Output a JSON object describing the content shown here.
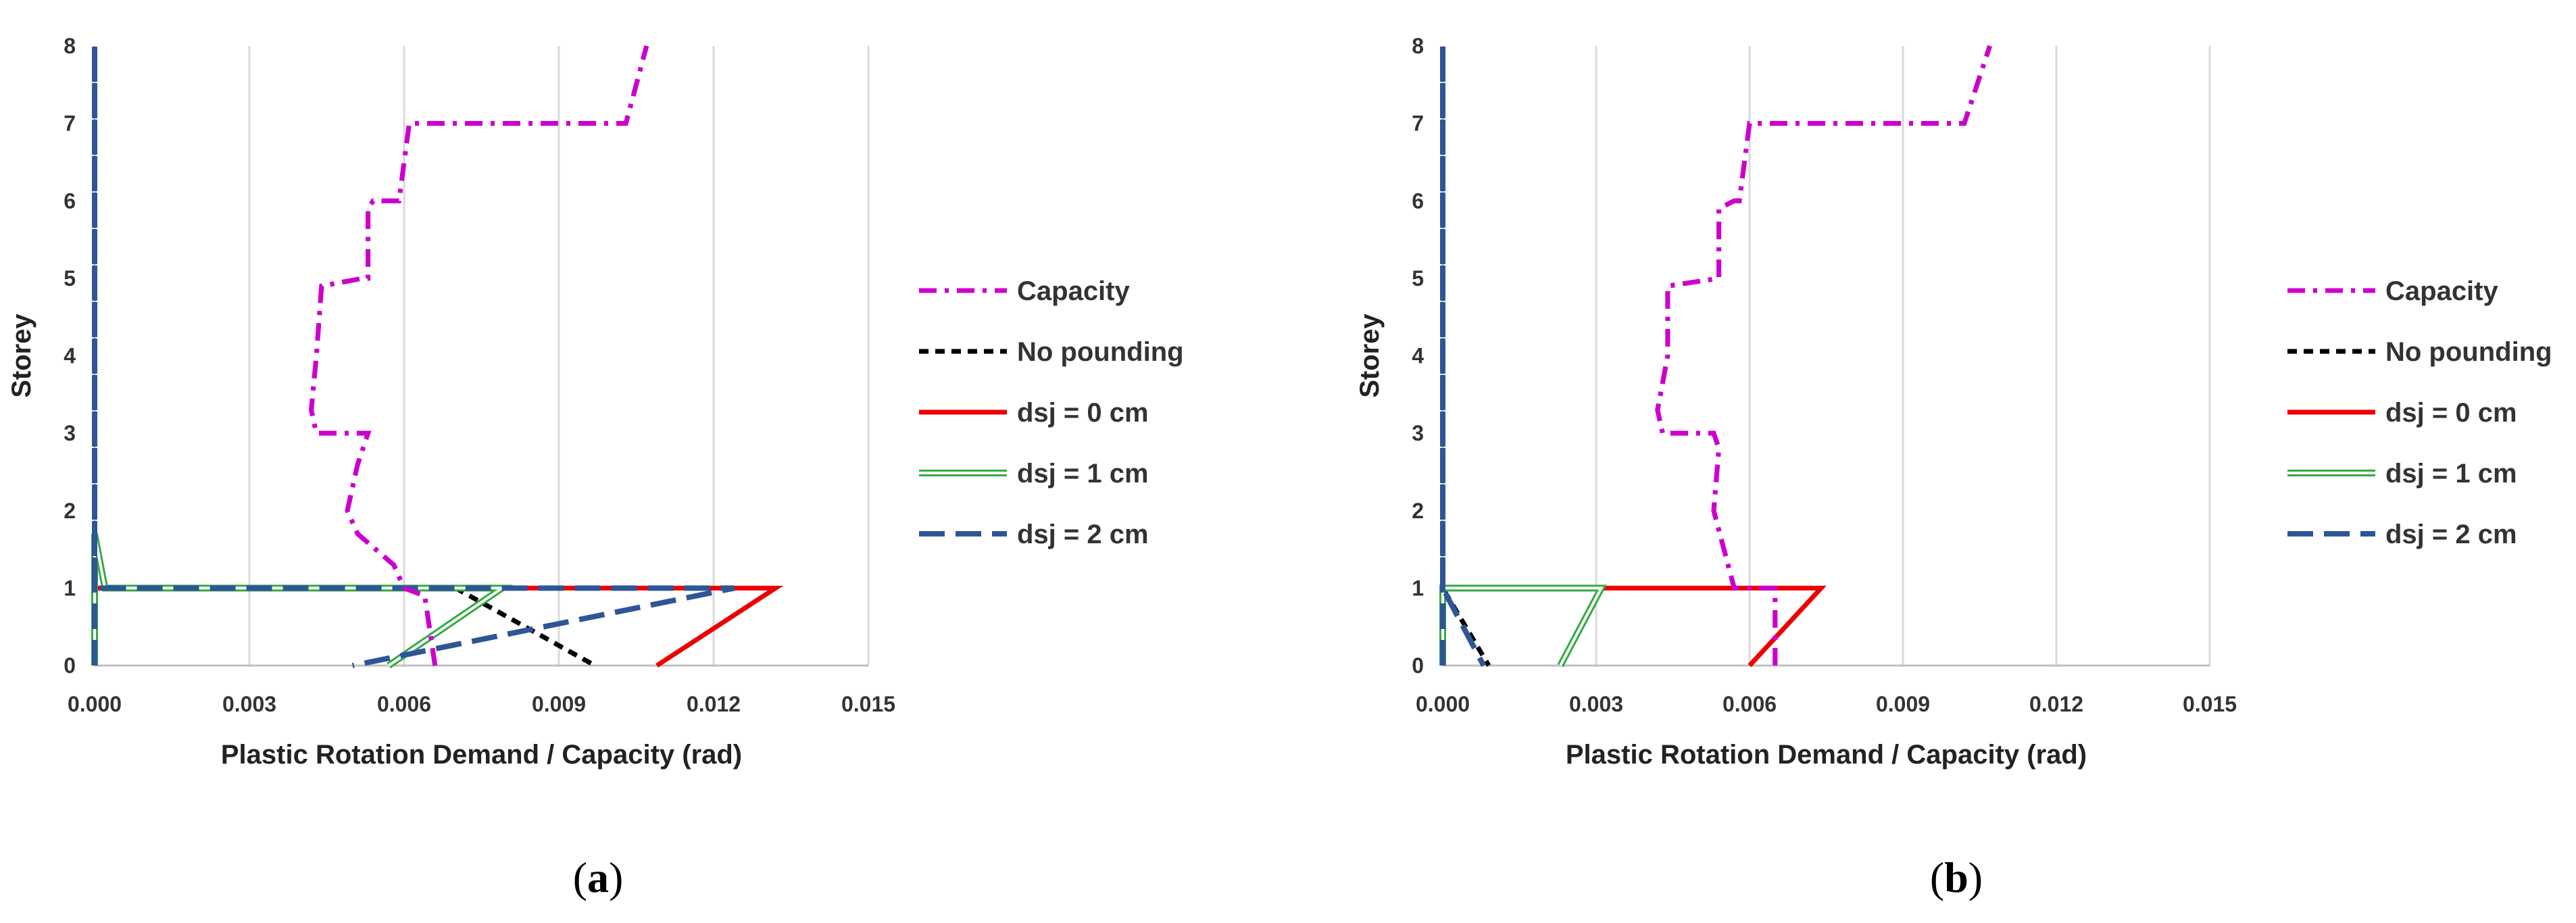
{
  "colors": {
    "capacity": "#CC00CC",
    "no_pounding": "#000000",
    "dsj0": "#EE0000",
    "dsj1": "#33AA44",
    "dsj2": "#2F5597",
    "grid": "#D9D9D9",
    "axis": "#BFBFBF"
  },
  "chart_data": [
    {
      "type": "line",
      "panel": "a",
      "caption": {
        "open": "(",
        "letter": "a",
        "close": ")"
      },
      "xlabel": "Plastic Rotation Demand / Capacity (rad)",
      "ylabel": "Storey",
      "xlim": [
        0,
        0.015
      ],
      "ylim": [
        0,
        8
      ],
      "xticks": [
        "0.000",
        "0.003",
        "0.006",
        "0.009",
        "0.012",
        "0.015"
      ],
      "yticks": [
        "0",
        "1",
        "2",
        "3",
        "4",
        "5",
        "6",
        "7",
        "8"
      ],
      "grid": "vertical",
      "legend_position": "right",
      "series": [
        {
          "key": "capacity",
          "name": "Capacity",
          "style": "dashdot",
          "points": [
            [
              0.0066,
              0
            ],
            [
              0.0064,
              0.9
            ],
            [
              0.006,
              1.0
            ],
            [
              0.0058,
              1.3
            ],
            [
              0.0051,
              1.7
            ],
            [
              0.0049,
              2.0
            ],
            [
              0.0051,
              2.6
            ],
            [
              0.0053,
              3.0
            ],
            [
              0.0043,
              3.0
            ],
            [
              0.0042,
              3.3
            ],
            [
              0.0043,
              4.0
            ],
            [
              0.0044,
              4.9
            ],
            [
              0.0052,
              5.0
            ],
            [
              0.0053,
              5.0
            ],
            [
              0.0053,
              5.9
            ],
            [
              0.0054,
              6.0
            ],
            [
              0.0059,
              6.0
            ],
            [
              0.0061,
              7.0
            ],
            [
              0.0103,
              7.0
            ],
            [
              0.0107,
              8.0
            ]
          ]
        },
        {
          "key": "no_pounding",
          "name": "No pounding",
          "style": "dashed",
          "points": [
            [
              0.0,
              0
            ],
            [
              0.0,
              1.0
            ],
            [
              0.007,
              1.0
            ],
            [
              0.0097,
              0
            ]
          ]
        },
        {
          "key": "dsj0",
          "name": "dsj = 0 cm",
          "style": "solid",
          "points": [
            [
              0.0,
              0
            ],
            [
              0.0,
              1.0
            ],
            [
              0.0132,
              1.0
            ],
            [
              0.0109,
              0
            ]
          ]
        },
        {
          "key": "dsj1",
          "name": "dsj = 1 cm",
          "style": "double",
          "points": [
            [
              0.0,
              0
            ],
            [
              0.0,
              1.7
            ],
            [
              0.0002,
              1.0
            ],
            [
              0.0079,
              1.0
            ],
            [
              0.0057,
              0
            ]
          ]
        },
        {
          "key": "dsj2",
          "name": "dsj = 2 cm",
          "style": "longdash",
          "points": [
            [
              0.0,
              0
            ],
            [
              0.0,
              8.0
            ],
            [
              0.0,
              1.0
            ],
            [
              0.0124,
              1.0
            ],
            [
              0.005,
              0
            ]
          ]
        }
      ]
    },
    {
      "type": "line",
      "panel": "b",
      "caption": {
        "open": "(",
        "letter": "b",
        "close": ")"
      },
      "xlabel": "Plastic Rotation Demand / Capacity (rad)",
      "ylabel": "Storey",
      "xlim": [
        0,
        0.015
      ],
      "ylim": [
        0,
        8
      ],
      "xticks": [
        "0.000",
        "0.003",
        "0.006",
        "0.009",
        "0.012",
        "0.015"
      ],
      "yticks": [
        "0",
        "1",
        "2",
        "3",
        "4",
        "5",
        "6",
        "7",
        "8"
      ],
      "grid": "vertical",
      "legend_position": "right",
      "series": [
        {
          "key": "capacity",
          "name": "Capacity",
          "style": "dashdot",
          "points": [
            [
              0.0065,
              0
            ],
            [
              0.0065,
              1.0
            ],
            [
              0.0057,
              1.0
            ],
            [
              0.0053,
              2.0
            ],
            [
              0.0054,
              2.8
            ],
            [
              0.0053,
              3.0
            ],
            [
              0.0043,
              3.0
            ],
            [
              0.0042,
              3.3
            ],
            [
              0.0044,
              4.0
            ],
            [
              0.0044,
              4.9
            ],
            [
              0.0054,
              5.0
            ],
            [
              0.0054,
              5.9
            ],
            [
              0.0057,
              6.0
            ],
            [
              0.0058,
              6.0
            ],
            [
              0.006,
              7.0
            ],
            [
              0.0102,
              7.0
            ],
            [
              0.0107,
              8.0
            ]
          ]
        },
        {
          "key": "no_pounding",
          "name": "No pounding",
          "style": "dashed",
          "points": [
            [
              0.0,
              0
            ],
            [
              0.0,
              1.0
            ],
            [
              0.0,
              1.0
            ],
            [
              0.0009,
              0
            ]
          ]
        },
        {
          "key": "dsj0",
          "name": "dsj = 0 cm",
          "style": "solid",
          "points": [
            [
              0.0,
              0
            ],
            [
              0.0,
              1.0
            ],
            [
              0.0074,
              1.0
            ],
            [
              0.006,
              0
            ]
          ]
        },
        {
          "key": "dsj1",
          "name": "dsj = 1 cm",
          "style": "double",
          "points": [
            [
              0.0,
              0
            ],
            [
              0.0,
              1.0
            ],
            [
              0.0031,
              1.0
            ],
            [
              0.0023,
              0
            ]
          ]
        },
        {
          "key": "dsj2",
          "name": "dsj = 2 cm",
          "style": "longdash",
          "points": [
            [
              0.0,
              0
            ],
            [
              0.0,
              8.0
            ],
            [
              0.0,
              1.0
            ],
            [
              0.0008,
              0
            ]
          ]
        }
      ]
    }
  ]
}
